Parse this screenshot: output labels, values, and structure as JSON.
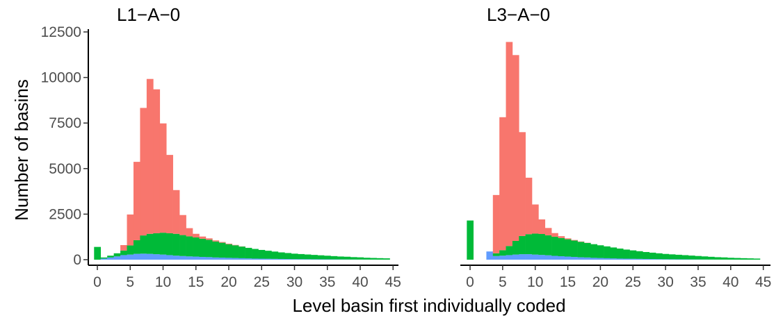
{
  "chart_data": {
    "type": "bar",
    "stacked": true,
    "xlabel": "Level basin first individually coded",
    "ylabel": "Number of basins",
    "ylim": [
      0,
      12500
    ],
    "xlim": [
      -1,
      45
    ],
    "x_ticks": [
      0,
      5,
      10,
      15,
      20,
      25,
      30,
      35,
      40,
      45
    ],
    "y_ticks": [
      0,
      2500,
      5000,
      7500,
      10000,
      12500
    ],
    "grid": false,
    "legend": "none",
    "colors": [
      "#619CFF",
      "#00BA38",
      "#F8766D"
    ],
    "panels": [
      {
        "title": "L1−A−0",
        "x": [
          0,
          1,
          2,
          3,
          4,
          5,
          6,
          7,
          8,
          9,
          10,
          11,
          12,
          13,
          14,
          15,
          16,
          17,
          18,
          19,
          20,
          21,
          22,
          23,
          24,
          25,
          26,
          27,
          28,
          29,
          30,
          31,
          32,
          33,
          34,
          35,
          36,
          37,
          38,
          39,
          40,
          41,
          42,
          43,
          44
        ],
        "series": [
          {
            "values": [
              0,
              60,
              120,
              180,
              250,
              280,
              320,
              330,
              320,
              300,
              280,
              250,
              220,
              200,
              180,
              170,
              150,
              140,
              120,
              110,
              100,
              90,
              80,
              70,
              60,
              55,
              50,
              45,
              40,
              35,
              30,
              28,
              25,
              22,
              20,
              18,
              16,
              14,
              12,
              10,
              8,
              6,
              5,
              4,
              3
            ]
          },
          {
            "values": [
              700,
              60,
              100,
              170,
              250,
              500,
              750,
              1000,
              1100,
              1150,
              1200,
              1200,
              1200,
              1150,
              1100,
              1050,
              1000,
              950,
              880,
              820,
              750,
              700,
              640,
              580,
              530,
              480,
              440,
              400,
              360,
              330,
              300,
              280,
              260,
              240,
              220,
              200,
              180,
              160,
              150,
              130,
              120,
              100,
              90,
              80,
              70
            ]
          },
          {
            "values": [
              0,
              0,
              0,
              0,
              300,
              1700,
              4300,
              7000,
              8500,
              7900,
              6000,
              4300,
              2400,
              1100,
              450,
              200,
              120,
              80,
              60,
              40,
              30,
              20,
              10,
              0,
              0,
              0,
              0,
              0,
              0,
              0,
              0,
              0,
              0,
              0,
              0,
              0,
              0,
              0,
              0,
              0,
              0,
              0,
              0,
              0,
              0
            ]
          }
        ]
      },
      {
        "title": "L3−A−0",
        "x": [
          0,
          1,
          2,
          3,
          4,
          5,
          6,
          7,
          8,
          9,
          10,
          11,
          12,
          13,
          14,
          15,
          16,
          17,
          18,
          19,
          20,
          21,
          22,
          23,
          24,
          25,
          26,
          27,
          28,
          29,
          30,
          31,
          32,
          33,
          34,
          35,
          36,
          37,
          38,
          39,
          40,
          41,
          42,
          43,
          44
        ],
        "series": [
          {
            "values": [
              0,
              0,
              0,
              450,
              200,
              220,
              250,
              280,
              300,
              300,
              280,
              260,
              240,
              210,
              190,
              170,
              150,
              130,
              120,
              100,
              90,
              80,
              70,
              60,
              55,
              50,
              45,
              40,
              35,
              30,
              25,
              22,
              20,
              18,
              15,
              12,
              10,
              8,
              6,
              5,
              4,
              3,
              2,
              2,
              1
            ]
          },
          {
            "values": [
              2150,
              0,
              0,
              0,
              150,
              300,
              500,
              750,
              1000,
              1100,
              1150,
              1150,
              1100,
              1050,
              1000,
              950,
              900,
              850,
              800,
              750,
              700,
              650,
              600,
              550,
              500,
              460,
              420,
              380,
              350,
              320,
              290,
              270,
              250,
              230,
              210,
              190,
              170,
              150,
              130,
              120,
              100,
              90,
              80,
              70,
              60
            ]
          },
          {
            "values": [
              0,
              0,
              0,
              0,
              3200,
              7300,
              11200,
              10200,
              5700,
              3100,
              1600,
              800,
              400,
              200,
              100,
              50,
              30,
              20,
              10,
              0,
              0,
              0,
              0,
              0,
              0,
              0,
              0,
              0,
              0,
              0,
              0,
              0,
              0,
              0,
              0,
              0,
              0,
              0,
              0,
              0,
              0,
              0,
              0,
              0,
              0
            ]
          }
        ]
      }
    ]
  }
}
